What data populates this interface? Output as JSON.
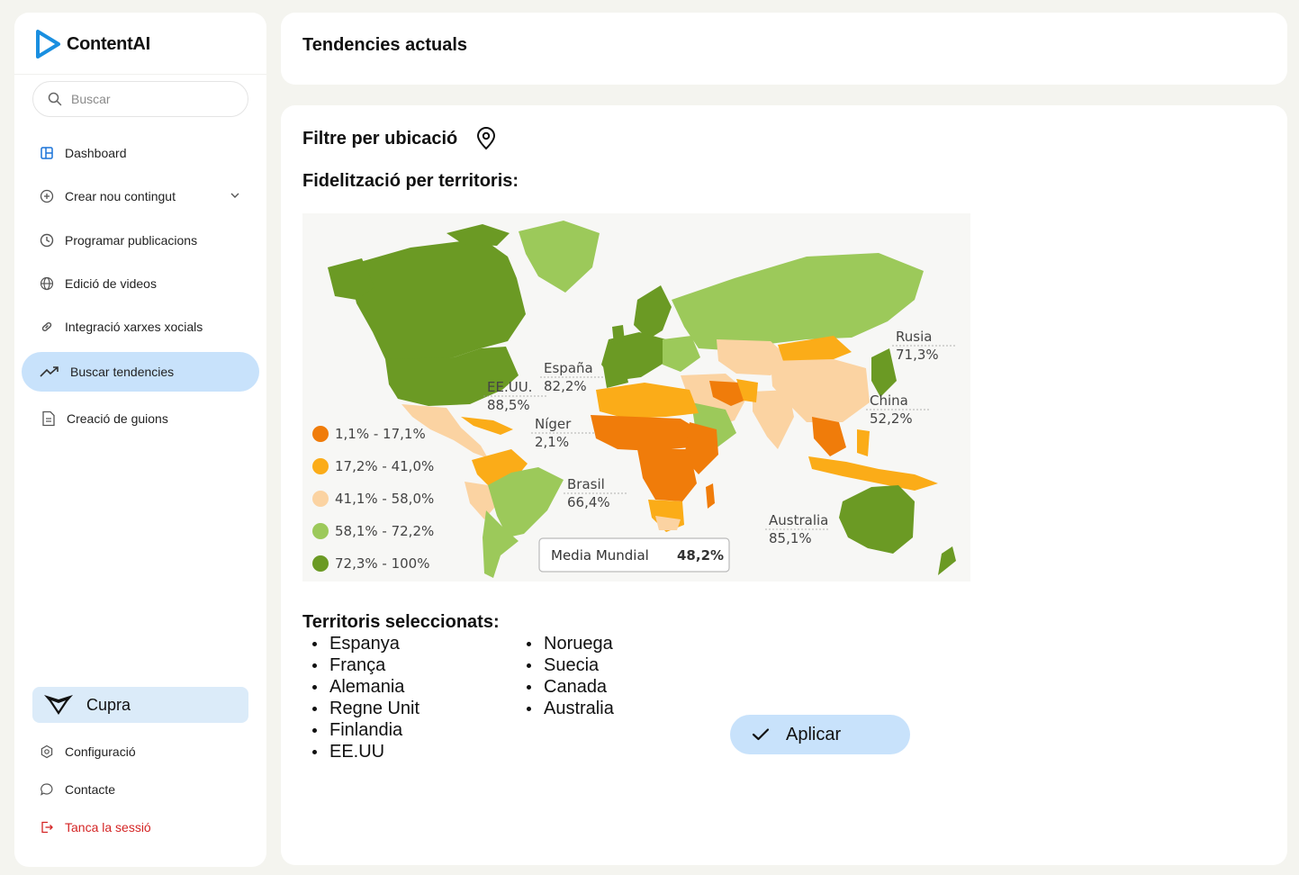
{
  "app": {
    "name": "ContentAI"
  },
  "search": {
    "placeholder": "Buscar"
  },
  "sidebar": {
    "items": [
      {
        "label": "Dashboard",
        "icon": "dashboard-icon"
      },
      {
        "label": "Crear nou contingut",
        "icon": "plus-circle-icon"
      },
      {
        "label": "Programar publicacions",
        "icon": "clock-icon"
      },
      {
        "label": "Edició de videos",
        "icon": "globe-icon"
      },
      {
        "label": "Integració xarxes xocials",
        "icon": "link-icon"
      },
      {
        "label": "Buscar tendencies",
        "icon": "trending-up-icon"
      },
      {
        "label": "Creació de guions",
        "icon": "document-icon"
      }
    ],
    "active_index": 5,
    "brand_account": "Cupra",
    "bottom": [
      {
        "label": "Configuració",
        "icon": "settings-icon"
      },
      {
        "label": "Contacte",
        "icon": "chat-icon"
      },
      {
        "label": "Tanca la sessió",
        "icon": "logout-icon"
      }
    ]
  },
  "header": {
    "title": "Tendencies actuals"
  },
  "main": {
    "filter_title": "Filtre per ubicació",
    "map_section_title": "Fidelització per territoris:",
    "selected_title": "Territoris seleccionats:",
    "territories_col1": [
      "Espanya",
      "França",
      "Alemania",
      "Regne Unit",
      "Finlandia",
      "EE.UU"
    ],
    "territories_col2": [
      "Noruega",
      "Suecia",
      "Canada",
      "Australia"
    ],
    "apply_label": "Aplicar"
  },
  "map": {
    "legend": [
      {
        "label": "1,1% - 17,1%",
        "color": "#f07c0a"
      },
      {
        "label": "17,2% - 41,0%",
        "color": "#fbac18"
      },
      {
        "label": "41,1% - 58,0%",
        "color": "#fbd3a2"
      },
      {
        "label": "58,1% - 72,2%",
        "color": "#9cc95a"
      },
      {
        "label": "72,3% - 100%",
        "color": "#6b9a24"
      }
    ],
    "callouts": [
      {
        "name": "Rusia",
        "value": "71,3%"
      },
      {
        "name": "España",
        "value": "82,2%"
      },
      {
        "name": "EE.UU.",
        "value": "88,5%"
      },
      {
        "name": "China",
        "value": "52,2%"
      },
      {
        "name": "Níger",
        "value": "2,1%"
      },
      {
        "name": "Brasil",
        "value": "66,4%"
      },
      {
        "name": "Australia",
        "value": "85,1%"
      }
    ],
    "world_average": {
      "label": "Media Mundial",
      "value": "48,2%"
    }
  }
}
